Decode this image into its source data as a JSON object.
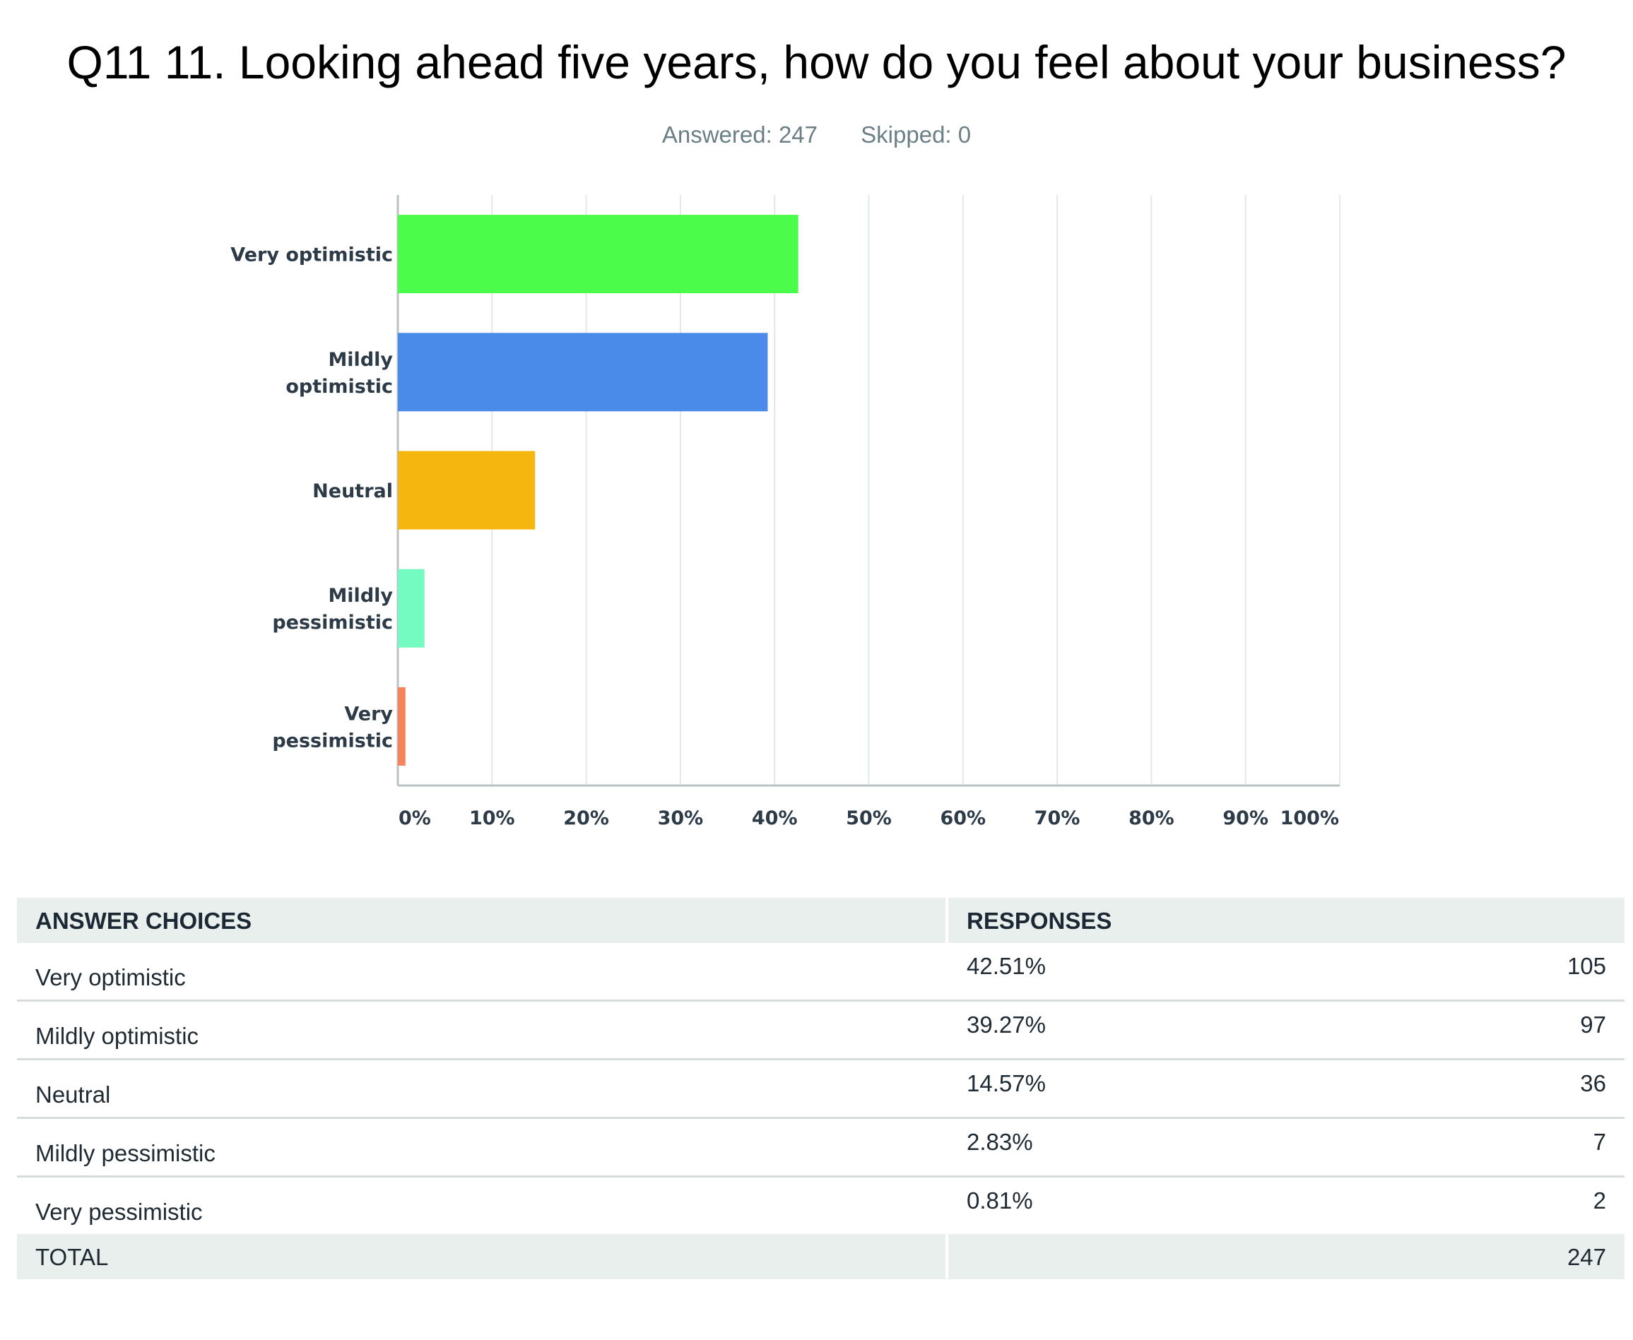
{
  "title": "Q11 11. Looking ahead five years, how do you feel about your business?",
  "answered": "Answered: 247",
  "skipped": "Skipped: 0",
  "chart_data": {
    "type": "bar",
    "orientation": "horizontal",
    "categories": [
      "Very optimistic",
      "Mildly optimistic",
      "Neutral",
      "Mildly pessimistic",
      "Very pessimistic"
    ],
    "category_lines": [
      [
        "Very optimistic"
      ],
      [
        "Mildly",
        "optimistic"
      ],
      [
        "Neutral"
      ],
      [
        "Mildly",
        "pessimistic"
      ],
      [
        "Very",
        "pessimistic"
      ]
    ],
    "values": [
      42.51,
      39.27,
      14.57,
      2.83,
      0.81
    ],
    "colors": [
      "#4bfc4b",
      "#4a8ae8",
      "#f5b60f",
      "#74fbc2",
      "#f5845c"
    ],
    "xlim": [
      0,
      100
    ],
    "x_ticks": [
      0,
      10,
      20,
      30,
      40,
      50,
      60,
      70,
      80,
      90,
      100
    ],
    "x_tick_labels": [
      "0%",
      "10%",
      "20%",
      "30%",
      "40%",
      "50%",
      "60%",
      "70%",
      "80%",
      "90%",
      "100%"
    ],
    "grid": "vertical"
  },
  "table": {
    "headers": [
      "ANSWER CHOICES",
      "RESPONSES"
    ],
    "rows": [
      {
        "choice": "Very optimistic",
        "percent": "42.51%",
        "count": "105"
      },
      {
        "choice": "Mildly optimistic",
        "percent": "39.27%",
        "count": "97"
      },
      {
        "choice": "Neutral",
        "percent": "14.57%",
        "count": "36"
      },
      {
        "choice": "Mildly pessimistic",
        "percent": "2.83%",
        "count": "7"
      },
      {
        "choice": "Very pessimistic",
        "percent": "0.81%",
        "count": "2"
      }
    ],
    "total_label": "TOTAL",
    "total_count": "247"
  }
}
